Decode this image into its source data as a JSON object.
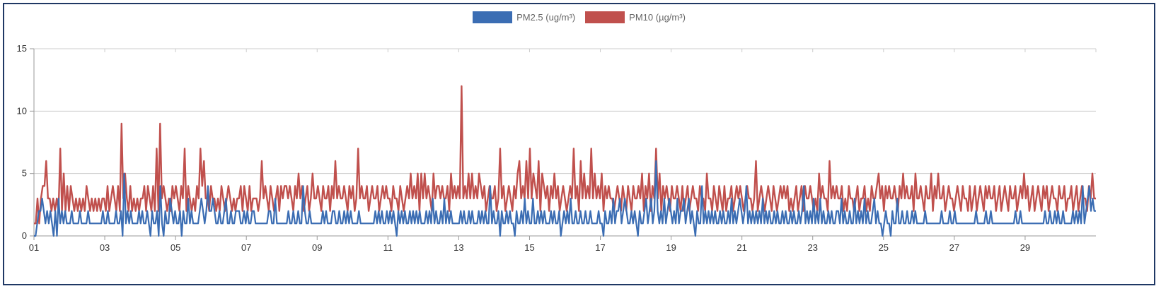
{
  "chart_data": {
    "type": "line",
    "legend_position": "top-center",
    "grid": true,
    "ylim": [
      0,
      15
    ],
    "yticks": [
      "0",
      "5",
      "10",
      "15"
    ],
    "xticks": [
      "01",
      "03",
      "05",
      "07",
      "09",
      "11",
      "13",
      "15",
      "17",
      "19",
      "21",
      "23",
      "25",
      "27",
      "29"
    ],
    "xrange_days": [
      1,
      31
    ],
    "series": [
      {
        "name": "PM2.5 (ug/m³)",
        "color": "#3b6db3",
        "values": [
          0,
          0,
          1,
          2,
          2,
          3,
          2,
          1,
          2,
          1,
          2,
          1,
          0,
          2,
          0,
          3,
          1,
          2,
          1,
          2,
          1,
          1,
          1,
          2,
          1,
          1,
          1,
          1,
          2,
          1,
          1,
          1,
          1,
          2,
          1,
          1,
          1,
          1,
          1,
          1,
          1,
          1,
          2,
          1,
          1,
          2,
          1,
          1,
          1,
          1,
          2,
          1,
          1,
          2,
          0,
          5,
          1,
          2,
          1,
          2,
          1,
          1,
          1,
          1,
          2,
          1,
          2,
          1,
          1,
          2,
          1,
          0,
          2,
          1,
          1,
          2,
          0,
          4,
          1,
          0,
          2,
          1,
          1,
          3,
          2,
          1,
          2,
          1,
          1,
          2,
          0,
          2,
          1,
          1,
          3,
          1,
          2,
          1,
          1,
          1,
          1,
          2,
          3,
          2,
          1,
          2,
          4,
          2,
          2,
          3,
          2,
          1,
          1,
          2,
          1,
          1,
          2,
          3,
          1,
          1,
          2,
          1,
          1,
          2,
          2,
          2,
          1,
          1,
          2,
          1,
          2,
          1,
          1,
          2,
          2,
          1,
          1,
          1,
          1,
          1,
          1,
          1,
          1,
          2,
          2,
          1,
          1,
          3,
          1,
          1,
          1,
          1,
          1,
          1,
          1,
          2,
          1,
          1,
          2,
          1,
          1,
          2,
          1,
          1,
          4,
          2,
          1,
          1,
          2,
          1,
          1,
          1,
          1,
          1,
          1,
          1,
          2,
          1,
          2,
          1,
          1,
          1,
          2,
          2,
          1,
          1,
          2,
          1,
          1,
          2,
          1,
          2,
          1,
          2,
          1,
          1,
          1,
          1,
          2,
          1,
          1,
          1,
          1,
          1,
          1,
          1,
          1,
          1,
          2,
          1,
          2,
          1,
          2,
          1,
          1,
          2,
          1,
          2,
          1,
          2,
          1,
          0,
          2,
          1,
          2,
          1,
          2,
          1,
          1,
          2,
          1,
          2,
          1,
          2,
          1,
          2,
          1,
          1,
          1,
          2,
          1,
          2,
          1,
          3,
          1,
          2,
          1,
          1,
          2,
          1,
          3,
          1,
          2,
          1,
          2,
          1,
          1,
          1,
          1,
          1,
          2,
          1,
          2,
          1,
          1,
          2,
          1,
          2,
          1,
          1,
          1,
          2,
          1,
          2,
          1,
          2,
          1,
          1,
          4,
          1,
          2,
          1,
          1,
          2,
          0,
          2,
          1,
          1,
          2,
          1,
          2,
          1,
          1,
          0,
          2,
          1,
          1,
          2,
          1,
          3,
          1,
          2,
          1,
          1,
          3,
          1,
          1,
          2,
          1,
          2,
          1,
          2,
          1,
          1,
          1,
          2,
          1,
          2,
          1,
          1,
          2,
          0,
          1,
          2,
          1,
          2,
          1,
          3,
          1,
          1,
          2,
          1,
          1,
          2,
          1,
          1,
          2,
          1,
          1,
          2,
          1,
          1,
          1,
          1,
          2,
          1,
          1,
          0,
          2,
          1,
          1,
          2,
          1,
          3,
          1,
          2,
          2,
          3,
          1,
          2,
          3,
          2,
          1,
          1,
          2,
          1,
          2,
          1,
          0,
          2,
          1,
          1,
          2,
          3,
          1,
          2,
          3,
          1,
          2,
          6,
          2,
          1,
          2,
          1,
          3,
          1,
          2,
          3,
          2,
          1,
          2,
          1,
          3,
          1,
          2,
          2,
          3,
          1,
          2,
          3,
          1,
          2,
          1,
          0,
          2,
          1,
          1,
          4,
          1,
          2,
          1,
          2,
          1,
          2,
          1,
          2,
          1,
          1,
          2,
          1,
          2,
          1,
          1,
          2,
          1,
          3,
          1,
          2,
          1,
          2,
          3,
          2,
          1,
          2,
          4,
          1,
          2,
          1,
          2,
          1,
          2,
          1,
          2,
          1,
          3,
          1,
          2,
          1,
          2,
          1,
          1,
          2,
          1,
          2,
          1,
          1,
          2,
          1,
          2,
          1,
          1,
          2,
          1,
          2,
          1,
          1,
          2,
          1,
          2,
          4,
          1,
          2,
          1,
          2,
          1,
          3,
          1,
          2,
          1,
          3,
          1,
          2,
          1,
          1,
          2,
          1,
          2,
          1,
          1,
          2,
          2,
          1,
          3,
          1,
          2,
          1,
          1,
          2,
          1,
          1,
          3,
          1,
          2,
          1,
          2,
          1,
          3,
          1,
          2,
          1,
          1,
          2,
          3,
          1,
          2,
          1,
          1,
          0,
          1,
          2,
          1,
          1,
          0,
          2,
          1,
          1,
          3,
          1,
          1,
          2,
          1,
          1,
          2,
          1,
          1,
          2,
          1,
          2,
          1,
          1,
          1,
          1,
          1,
          2,
          1,
          1,
          1,
          1,
          1,
          1,
          1,
          1,
          1,
          2,
          1,
          1,
          1,
          1,
          2,
          1,
          1,
          2,
          1,
          1,
          1,
          1,
          1,
          1,
          1,
          1,
          1,
          1,
          1,
          1,
          2,
          1,
          1,
          1,
          1,
          1,
          2,
          1,
          1,
          2,
          1,
          1,
          1,
          1,
          1,
          1,
          1,
          1,
          1,
          1,
          1,
          1,
          1,
          1,
          2,
          1,
          1,
          2,
          1,
          1,
          1,
          1,
          1,
          1,
          1,
          1,
          1,
          1,
          1,
          1,
          1,
          1,
          2,
          1,
          1,
          2,
          1,
          1,
          2,
          1,
          2,
          1,
          1,
          2,
          1,
          1,
          1,
          1,
          1,
          2,
          1,
          2,
          1,
          2,
          1,
          4,
          1,
          2,
          3,
          4,
          2,
          3,
          2,
          2
        ]
      },
      {
        "name": "PM10 (µg/m³)",
        "color": "#c0504d",
        "values": [
          1,
          1,
          3,
          1,
          3,
          4,
          4,
          6,
          3,
          3,
          2,
          3,
          2,
          3,
          2,
          7,
          2,
          5,
          2,
          4,
          2,
          4,
          3,
          2,
          3,
          2,
          3,
          2,
          3,
          2,
          4,
          3,
          2,
          3,
          2,
          3,
          2,
          3,
          2,
          3,
          3,
          2,
          4,
          2,
          3,
          4,
          3,
          2,
          4,
          2,
          9,
          3,
          5,
          3,
          2,
          4,
          2,
          3,
          2,
          3,
          2,
          3,
          3,
          4,
          2,
          4,
          3,
          2,
          4,
          2,
          7,
          2,
          9,
          3,
          4,
          3,
          2,
          3,
          2,
          4,
          3,
          4,
          3,
          2,
          4,
          3,
          7,
          2,
          4,
          3,
          2,
          3,
          2,
          4,
          3,
          7,
          4,
          6,
          3,
          3,
          2,
          4,
          3,
          3,
          2,
          3,
          2,
          4,
          3,
          2,
          3,
          4,
          3,
          2,
          3,
          2,
          3,
          3,
          4,
          2,
          4,
          3,
          2,
          4,
          2,
          3,
          3,
          3,
          2,
          3,
          6,
          3,
          4,
          3,
          2,
          4,
          3,
          2,
          3,
          4,
          2,
          4,
          3,
          4,
          4,
          3,
          4,
          3,
          2,
          4,
          3,
          5,
          3,
          4,
          2,
          3,
          4,
          2,
          3,
          5,
          3,
          3,
          4,
          3,
          2,
          4,
          3,
          3,
          4,
          2,
          4,
          3,
          6,
          3,
          4,
          3,
          3,
          4,
          3,
          2,
          4,
          3,
          4,
          2,
          3,
          7,
          3,
          4,
          3,
          3,
          4,
          2,
          3,
          4,
          3,
          3,
          4,
          2,
          3,
          4,
          3,
          4,
          3,
          3,
          2,
          4,
          3,
          3,
          2,
          4,
          3,
          2,
          3,
          4,
          3,
          5,
          3,
          4,
          3,
          5,
          2,
          5,
          3,
          5,
          3,
          4,
          3,
          2,
          5,
          3,
          4,
          4,
          3,
          4,
          3,
          3,
          4,
          2,
          5,
          3,
          4,
          3,
          4,
          3,
          12,
          3,
          4,
          3,
          5,
          3,
          5,
          3,
          4,
          3,
          5,
          4,
          3,
          4,
          2,
          3,
          4,
          3,
          3,
          4,
          2,
          3,
          7,
          3,
          4,
          2,
          3,
          4,
          3,
          2,
          4,
          3,
          5,
          6,
          3,
          4,
          3,
          6,
          3,
          7,
          3,
          5,
          4,
          3,
          6,
          2,
          5,
          4,
          3,
          4,
          2,
          4,
          3,
          5,
          3,
          4,
          2,
          3,
          4,
          3,
          2,
          3,
          4,
          3,
          7,
          3,
          4,
          2,
          6,
          3,
          5,
          3,
          4,
          3,
          7,
          3,
          5,
          3,
          4,
          3,
          5,
          2,
          4,
          3,
          4,
          3,
          3,
          2,
          3,
          4,
          3,
          2,
          4,
          3,
          2,
          4,
          3,
          2,
          4,
          3,
          3,
          4,
          3,
          5,
          2,
          4,
          3,
          5,
          2,
          4,
          3,
          7,
          3,
          5,
          2,
          4,
          3,
          4,
          3,
          2,
          4,
          3,
          3,
          4,
          3,
          2,
          4,
          2,
          3,
          4,
          2,
          3,
          4,
          3,
          3,
          2,
          4,
          3,
          3,
          2,
          5,
          3,
          3,
          2,
          4,
          3,
          2,
          4,
          3,
          2,
          4,
          2,
          3,
          3,
          4,
          2,
          3,
          4,
          3,
          4,
          3,
          2,
          3,
          4,
          3,
          3,
          2,
          3,
          6,
          2,
          3,
          4,
          3,
          2,
          3,
          4,
          3,
          2,
          4,
          3,
          2,
          3,
          4,
          3,
          4,
          3,
          4,
          2,
          3,
          2,
          3,
          4,
          2,
          3,
          4,
          2,
          4,
          3,
          3,
          4,
          3,
          2,
          3,
          2,
          5,
          3,
          4,
          3,
          3,
          2,
          6,
          3,
          4,
          3,
          4,
          3,
          3,
          4,
          2,
          3,
          2,
          4,
          3,
          3,
          2,
          3,
          4,
          2,
          3,
          3,
          4,
          2,
          3,
          2,
          4,
          3,
          3,
          4,
          5,
          3,
          4,
          2,
          4,
          3,
          4,
          3,
          3,
          4,
          3,
          2,
          4,
          3,
          5,
          3,
          4,
          3,
          3,
          4,
          2,
          5,
          3,
          3,
          4,
          3,
          2,
          4,
          3,
          3,
          5,
          2,
          4,
          3,
          5,
          3,
          3,
          4,
          2,
          3,
          4,
          3,
          3,
          2,
          3,
          4,
          3,
          2,
          4,
          3,
          3,
          2,
          4,
          2,
          3,
          4,
          2,
          3,
          4,
          3,
          2,
          4,
          3,
          4,
          3,
          3,
          4,
          2,
          3,
          4,
          2,
          3,
          4,
          3,
          2,
          4,
          3,
          3,
          4,
          2,
          3,
          4,
          3,
          5,
          3,
          4,
          2,
          3,
          4,
          2,
          3,
          4,
          3,
          2,
          4,
          3,
          4,
          2,
          3,
          4,
          3,
          3,
          2,
          4,
          3,
          3,
          4,
          2,
          3,
          3,
          4,
          2,
          3,
          4,
          2,
          3,
          4,
          3,
          3,
          2,
          4,
          3,
          5,
          3,
          3
        ]
      }
    ]
  }
}
